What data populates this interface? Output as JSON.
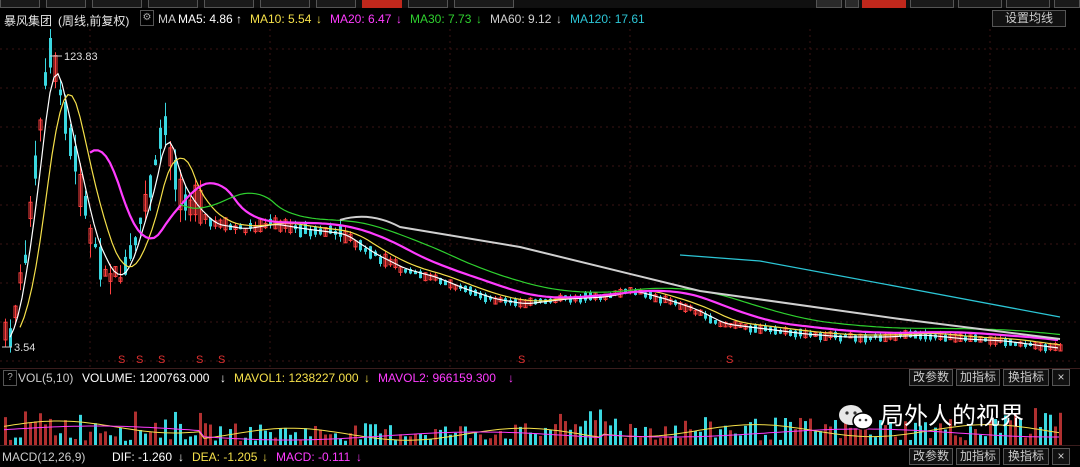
{
  "top_tabs": {
    "items": [
      "",
      "",
      "",
      "",
      "",
      "",
      "",
      "",
      "",
      "",
      "",
      "",
      "",
      "",
      "",
      "",
      "",
      ""
    ]
  },
  "legend": {
    "stock_name": "暴风集团",
    "period": "(周线,前复权)",
    "ma_label": "MA",
    "ma5": "MA5: 4.86",
    "ma10": "MA10: 5.54",
    "ma20": "MA20: 6.47",
    "ma30": "MA30: 7.73",
    "ma60": "MA60: 9.12",
    "ma120": "MA120: 17.61",
    "arrow_up": "↑",
    "arrow_down": "↓",
    "settings_button": "设置均线",
    "colors": {
      "ma5": "#ffffff",
      "ma10": "#f5e04a",
      "ma20": "#ff3cff",
      "ma30": "#2fd12f",
      "ma60": "#d0d0d0",
      "ma120": "#2cc6d6"
    }
  },
  "price_chart": {
    "high_label": "123.83",
    "low_label": "3.54",
    "s_marker": "S"
  },
  "volume": {
    "indicator": "VOL(5,10)",
    "volume": "VOLUME: 1200763.000",
    "mavol1": "MAVOL1: 1238227.000",
    "mavol2": "MAVOL2: 966159.300",
    "btn_params": "改参数",
    "btn_add": "加指标",
    "btn_switch": "换指标"
  },
  "macd": {
    "indicator": "MACD(12,26,9)",
    "dif": "DIF: -1.260",
    "dea": "DEA: -1.205",
    "macd": "MACD: -0.111",
    "btn_params": "改参数",
    "btn_add": "加指标",
    "btn_switch": "换指标"
  },
  "watermark": {
    "text": "局外人的视界"
  },
  "chart_data": {
    "type": "candlestick",
    "title": "暴风集团",
    "period": "weekly, forward-adjusted",
    "price_high": 123.83,
    "price_low": 3.54,
    "moving_averages": [
      {
        "name": "MA5",
        "value": 4.86,
        "trend": "up"
      },
      {
        "name": "MA10",
        "value": 5.54,
        "trend": "down"
      },
      {
        "name": "MA20",
        "value": 6.47,
        "trend": "down"
      },
      {
        "name": "MA30",
        "value": 7.73,
        "trend": "down"
      },
      {
        "name": "MA60",
        "value": 9.12,
        "trend": "down"
      },
      {
        "name": "MA120",
        "value": 17.61,
        "trend": "down"
      }
    ],
    "volume": {
      "VOLUME": 1200763.0,
      "MAVOL1": 1238227.0,
      "MAVOL2": 966159.3
    },
    "macd": {
      "DIF": -1.26,
      "DEA": -1.205,
      "MACD": -0.111
    }
  }
}
